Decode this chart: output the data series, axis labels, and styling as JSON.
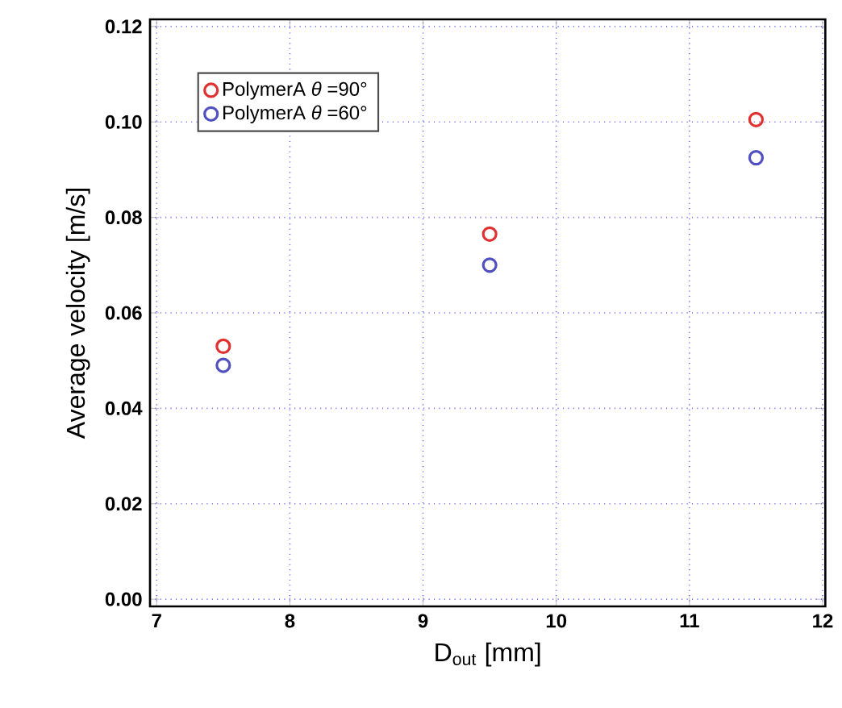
{
  "chart_data": {
    "type": "scatter",
    "xlabel": "D$_{out}$ [mm]",
    "ylabel": "Average velocity [m/s]",
    "x": [
      7.5,
      9.5,
      11.5
    ],
    "series": [
      {
        "name": "PolymerA *θ* =90°",
        "color": "#e03030",
        "values": [
          0.053,
          0.0765,
          0.1005
        ]
      },
      {
        "name": "PolymerA *θ* =60°",
        "color": "#5050c0",
        "values": [
          0.049,
          0.07,
          0.0925
        ]
      }
    ],
    "xlim": [
      6.95,
      12.02
    ],
    "ylim": [
      -0.0015,
      0.1215
    ],
    "xticks": [
      7,
      8,
      9,
      10,
      11,
      12
    ],
    "yticks": [
      {
        "value": 0,
        "label": "0.00"
      },
      {
        "value": 0.02,
        "label": "0.02"
      },
      {
        "value": 0.04,
        "label": "0.04"
      },
      {
        "value": 0.06,
        "label": "0.06"
      },
      {
        "value": 0.08,
        "label": "0.08"
      },
      {
        "value": 0.1,
        "label": "0.10"
      },
      {
        "value": 0.12,
        "label": "0.12"
      }
    ],
    "grid": true,
    "legend": "top left",
    "marker": "circle"
  }
}
